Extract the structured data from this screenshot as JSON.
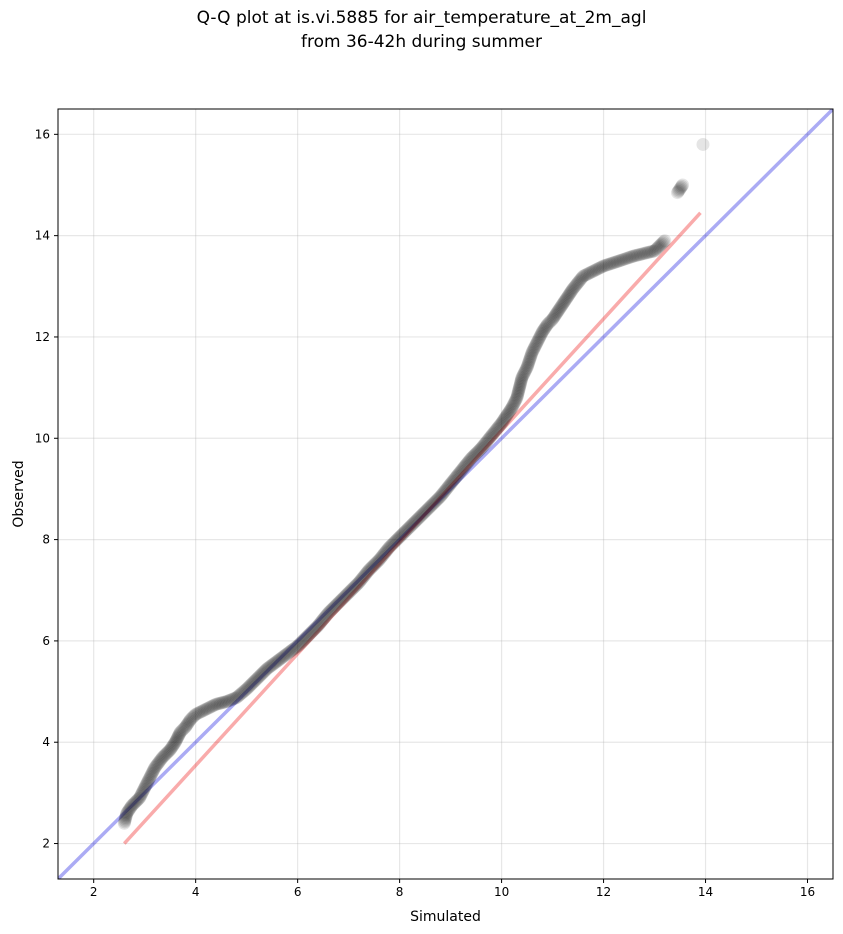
{
  "chart_data": {
    "type": "scatter",
    "title_lines": [
      "Q-Q plot at is.vi.5885 for air_temperature_at_2m_agl",
      "from 36-42h during summer"
    ],
    "xlabel": "Simulated",
    "ylabel": "Observed",
    "xlim": [
      1.3,
      16.5
    ],
    "ylim": [
      1.3,
      16.5
    ],
    "xticks": [
      2,
      4,
      6,
      8,
      10,
      12,
      14,
      16
    ],
    "yticks": [
      2,
      4,
      6,
      8,
      10,
      12,
      14,
      16
    ],
    "grid": true,
    "point_color": "#000000",
    "reference_lines": [
      {
        "name": "identity",
        "color": "#0000dd",
        "x": [
          1.3,
          16.5
        ],
        "y": [
          1.3,
          16.5
        ]
      },
      {
        "name": "fit",
        "color": "#ee0000",
        "x": [
          2.6,
          13.9
        ],
        "y": [
          2.0,
          14.45
        ]
      }
    ],
    "quantiles": {
      "x": [
        2.6,
        2.65,
        2.75,
        2.9,
        3.0,
        3.1,
        3.2,
        3.35,
        3.5,
        3.6,
        3.65,
        3.7,
        3.8,
        3.9,
        4.0,
        4.2,
        4.4,
        4.6,
        4.8,
        5.0,
        5.2,
        5.4,
        5.6,
        5.8,
        6.0,
        6.2,
        6.4,
        6.6,
        6.8,
        7.0,
        7.2,
        7.4,
        7.6,
        7.8,
        8.0,
        8.2,
        8.4,
        8.6,
        8.8,
        9.0,
        9.2,
        9.4,
        9.6,
        9.8,
        10.0,
        10.1,
        10.2,
        10.3,
        10.35,
        10.4,
        10.5,
        10.55,
        10.6,
        10.7,
        10.8,
        10.9,
        11.0,
        11.1,
        11.2,
        11.3,
        11.4,
        11.6,
        11.8,
        12.0,
        12.3,
        12.6,
        13.0,
        13.2,
        13.45,
        13.55,
        13.95
      ],
      "y": [
        2.4,
        2.6,
        2.75,
        2.9,
        3.1,
        3.3,
        3.5,
        3.7,
        3.85,
        4.0,
        4.1,
        4.2,
        4.3,
        4.45,
        4.55,
        4.65,
        4.75,
        4.8,
        4.88,
        5.05,
        5.25,
        5.45,
        5.6,
        5.75,
        5.9,
        6.1,
        6.3,
        6.55,
        6.75,
        6.95,
        7.15,
        7.4,
        7.6,
        7.85,
        8.05,
        8.25,
        8.45,
        8.65,
        8.85,
        9.1,
        9.35,
        9.6,
        9.8,
        10.05,
        10.3,
        10.45,
        10.6,
        10.8,
        11.0,
        11.2,
        11.4,
        11.55,
        11.7,
        11.9,
        12.1,
        12.25,
        12.35,
        12.5,
        12.65,
        12.8,
        12.95,
        13.2,
        13.3,
        13.4,
        13.5,
        13.6,
        13.7,
        13.9,
        14.85,
        15.0,
        15.8
      ]
    }
  }
}
